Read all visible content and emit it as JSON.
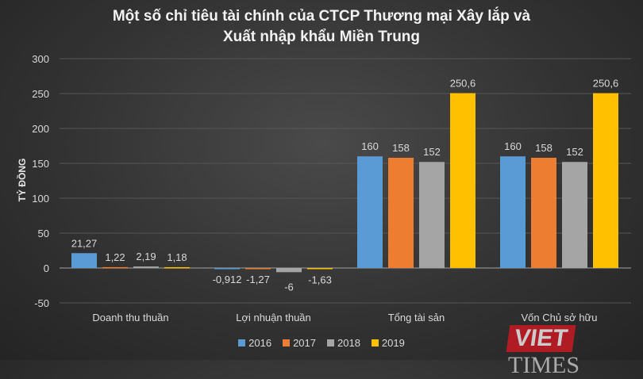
{
  "chart_data": {
    "type": "bar",
    "title": "Một số chỉ tiêu tài chính của CTCP Thương mại Xây lắp và Xuất nhập khẩu Miền Trung",
    "title_lines": [
      "Một số chỉ tiêu tài chính của CTCP Thương mại Xây lắp và",
      "Xuất nhập khẩu Miền Trung"
    ],
    "xlabel": "",
    "ylabel": "TỶ ĐỒNG",
    "ylim": [
      -50,
      300
    ],
    "yticks": [
      -50,
      0,
      50,
      100,
      150,
      200,
      250,
      300
    ],
    "grid": true,
    "legend_position": "bottom",
    "categories": [
      "Doanh thu thuần",
      "Lợi nhuận thuần",
      "Tổng tài sản",
      "Vốn Chủ sở hữu"
    ],
    "series": [
      {
        "name": "2016",
        "color": "#5b9bd5",
        "values": [
          21.27,
          -0.912,
          160,
          160
        ],
        "labels": [
          "21,27",
          "-0,912",
          "160",
          "160"
        ]
      },
      {
        "name": "2017",
        "color": "#ed7d31",
        "values": [
          1.22,
          -1.27,
          158,
          158
        ],
        "labels": [
          "1,22",
          "-1,27",
          "158",
          "158"
        ]
      },
      {
        "name": "2018",
        "color": "#a5a5a5",
        "values": [
          2.19,
          -6,
          152,
          152
        ],
        "labels": [
          "2,19",
          "-6",
          "152",
          "152"
        ]
      },
      {
        "name": "2019",
        "color": "#ffc000",
        "values": [
          1.18,
          -1.63,
          250.6,
          250.6
        ],
        "labels": [
          "1,18",
          "-1,63",
          "250,6",
          "250,6"
        ]
      }
    ]
  },
  "watermark": {
    "brand": "VIETTIMES",
    "left": "VIET",
    "right": "TIMES"
  }
}
